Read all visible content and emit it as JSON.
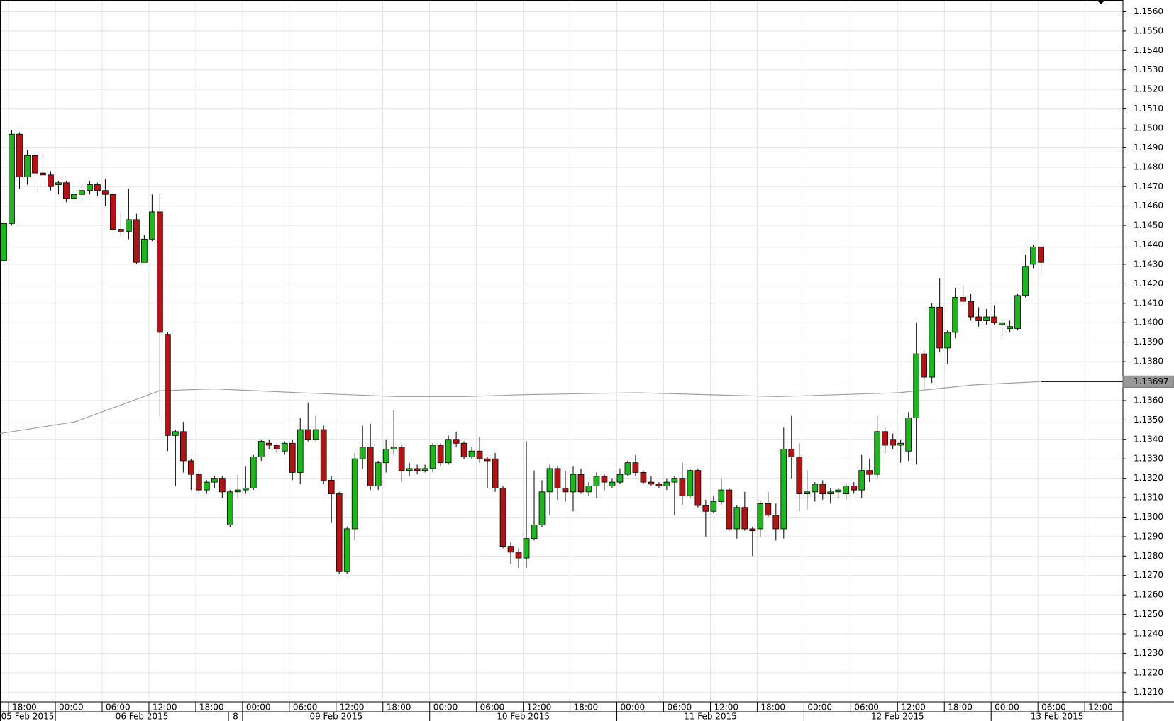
{
  "chart_data": {
    "type": "candlestick",
    "x": [
      0,
      1,
      2,
      3,
      4,
      5,
      6,
      7,
      8,
      9,
      10,
      11,
      12,
      13,
      14,
      15,
      16,
      17,
      18,
      19,
      20,
      21,
      22,
      23,
      24,
      25,
      26,
      27,
      28,
      29,
      30,
      31,
      32,
      33,
      34,
      35,
      36,
      37,
      38,
      39,
      40,
      41,
      42,
      43,
      44,
      45,
      46,
      47,
      48,
      49,
      50,
      51,
      52,
      53,
      54,
      55,
      56,
      57,
      58,
      59,
      60,
      61,
      62,
      63,
      64,
      65,
      66,
      67,
      68,
      69,
      70,
      71,
      72,
      73,
      74,
      75,
      76,
      77,
      78,
      79,
      80,
      81,
      82,
      83,
      84,
      85,
      86,
      87,
      88,
      89,
      90,
      91,
      92,
      93,
      94,
      95,
      96,
      97,
      98,
      99,
      100,
      101,
      102,
      103,
      104,
      105,
      106,
      107,
      108,
      109,
      110,
      111,
      112,
      113,
      114,
      115,
      116,
      117,
      118,
      119,
      120,
      121,
      122,
      123,
      124,
      125,
      126,
      127,
      128,
      129,
      130,
      131,
      132,
      133
    ],
    "open": [
      1.1432,
      1.1451,
      1.1497,
      1.1475,
      1.1486,
      1.1477,
      1.1476,
      1.1471,
      1.1472,
      1.1464,
      1.1466,
      1.1468,
      1.1471,
      1.1468,
      1.1466,
      1.1448,
      1.1447,
      1.1453,
      1.1431,
      1.1443,
      1.1457,
      1.1394,
      1.1342,
      1.1344,
      1.1329,
      1.1322,
      1.1314,
      1.1318,
      1.132,
      1.1296,
      1.1313,
      1.1314,
      1.1315,
      1.1331,
      1.1338,
      1.1337,
      1.1334,
      1.1338,
      1.1323,
      1.1345,
      1.134,
      1.1345,
      1.1319,
      1.1312,
      1.1272,
      1.1294,
      1.133,
      1.1336,
      1.1316,
      1.1328,
      1.1335,
      1.1336,
      1.1324,
      1.1325,
      1.1324,
      1.1325,
      1.1337,
      1.1328,
      1.134,
      1.1338,
      1.1331,
      1.1334,
      1.133,
      1.133,
      1.1315,
      1.1285,
      1.1282,
      1.1279,
      1.1289,
      1.1296,
      1.1313,
      1.1325,
      1.1315,
      1.1313,
      1.1322,
      1.1313,
      1.1316,
      1.1321,
      1.1316,
      1.1318,
      1.1322,
      1.1328,
      1.1323,
      1.1318,
      1.1317,
      1.1316,
      1.1318,
      1.132,
      1.1311,
      1.1324,
      1.1306,
      1.1303,
      1.1308,
      1.1314,
      1.1294,
      1.1305,
      1.1294,
      1.1294,
      1.1307,
      1.1301,
      1.1294,
      1.1335,
      1.1331,
      1.1312,
      1.1313,
      1.1317,
      1.1312,
      1.1313,
      1.1312,
      1.1316,
      1.1314,
      1.1324,
      1.1322,
      1.1344,
      1.134,
      1.1337,
      1.1334,
      1.1351,
      1.1384,
      1.1372,
      1.1408,
      1.1387,
      1.1395,
      1.1413,
      1.1411,
      1.1403,
      1.1401,
      1.1403,
      1.1399,
      1.1397,
      1.1397,
      1.1414,
      1.143,
      1.1439
    ],
    "high": [
      1.1452,
      1.1499,
      1.1498,
      1.1489,
      1.1487,
      1.1485,
      1.1478,
      1.1473,
      1.1473,
      1.1468,
      1.147,
      1.1473,
      1.1472,
      1.1474,
      1.1467,
      1.1456,
      1.1469,
      1.1456,
      1.1445,
      1.1466,
      1.1466,
      1.1395,
      1.1345,
      1.1349,
      1.133,
      1.1324,
      1.1319,
      1.1321,
      1.1321,
      1.1314,
      1.1322,
      1.1326,
      1.1332,
      1.134,
      1.134,
      1.1338,
      1.1339,
      1.134,
      1.1351,
      1.1359,
      1.1352,
      1.1347,
      1.1321,
      1.1313,
      1.1295,
      1.1333,
      1.1347,
      1.1348,
      1.1329,
      1.134,
      1.1355,
      1.1337,
      1.1328,
      1.1327,
      1.1327,
      1.1338,
      1.1338,
      1.1342,
      1.1344,
      1.1339,
      1.1336,
      1.1341,
      1.1331,
      1.1333,
      1.1316,
      1.1287,
      1.1284,
      1.1339,
      1.1324,
      1.1319,
      1.1327,
      1.1326,
      1.1324,
      1.1326,
      1.1325,
      1.1318,
      1.1323,
      1.1322,
      1.132,
      1.1325,
      1.1329,
      1.1332,
      1.1324,
      1.1321,
      1.1318,
      1.132,
      1.1321,
      1.1328,
      1.1325,
      1.1325,
      1.1309,
      1.1311,
      1.132,
      1.1315,
      1.1306,
      1.1313,
      1.1295,
      1.1308,
      1.1313,
      1.1307,
      1.1346,
      1.1352,
      1.1338,
      1.1324,
      1.1318,
      1.1319,
      1.1315,
      1.1315,
      1.1317,
      1.1318,
      1.1332,
      1.133,
      1.1352,
      1.1346,
      1.1343,
      1.134,
      1.1354,
      1.14,
      1.1386,
      1.141,
      1.1423,
      1.1396,
      1.1418,
      1.1419,
      1.1415,
      1.1408,
      1.1407,
      1.1409,
      1.1402,
      1.1401,
      1.1415,
      1.1435,
      1.144,
      1.144
    ],
    "low": [
      1.1429,
      1.145,
      1.1469,
      1.1471,
      1.1469,
      1.147,
      1.1468,
      1.1466,
      1.1462,
      1.1462,
      1.1462,
      1.1466,
      1.1465,
      1.146,
      1.1447,
      1.1444,
      1.1443,
      1.143,
      1.1431,
      1.1442,
      1.1352,
      1.1334,
      1.1316,
      1.1323,
      1.1314,
      1.1312,
      1.1312,
      1.1315,
      1.131,
      1.1295,
      1.131,
      1.1312,
      1.1314,
      1.1329,
      1.1335,
      1.1333,
      1.1332,
      1.1319,
      1.1317,
      1.1339,
      1.1339,
      1.1317,
      1.1297,
      1.1271,
      1.1271,
      1.1288,
      1.1325,
      1.1314,
      1.1314,
      1.1323,
      1.1332,
      1.1318,
      1.1321,
      1.1322,
      1.1323,
      1.1323,
      1.1326,
      1.1327,
      1.1336,
      1.133,
      1.133,
      1.1328,
      1.1315,
      1.1313,
      1.1284,
      1.1276,
      1.1274,
      1.1274,
      1.1288,
      1.1295,
      1.1301,
      1.1309,
      1.1308,
      1.1303,
      1.1312,
      1.1311,
      1.131,
      1.1314,
      1.1315,
      1.1317,
      1.1321,
      1.1321,
      1.1317,
      1.1316,
      1.1315,
      1.1314,
      1.1301,
      1.1306,
      1.131,
      1.1305,
      1.129,
      1.1302,
      1.1306,
      1.1293,
      1.1289,
      1.1293,
      1.128,
      1.129,
      1.13,
      1.1288,
      1.1289,
      1.132,
      1.1303,
      1.1304,
      1.1308,
      1.1309,
      1.1307,
      1.131,
      1.1309,
      1.1312,
      1.131,
      1.1318,
      1.132,
      1.1333,
      1.1335,
      1.1328,
      1.1329,
      1.1327,
      1.1366,
      1.1369,
      1.1385,
      1.1379,
      1.1392,
      1.141,
      1.1401,
      1.1398,
      1.1399,
      1.1399,
      1.1393,
      1.1395,
      1.1396,
      1.1413,
      1.1428,
      1.1425
    ],
    "close": [
      1.1451,
      1.1497,
      1.1475,
      1.1486,
      1.1477,
      1.1476,
      1.147,
      1.1472,
      1.1464,
      1.1466,
      1.1468,
      1.1471,
      1.1468,
      1.1466,
      1.1448,
      1.1447,
      1.1453,
      1.1431,
      1.1443,
      1.1457,
      1.1395,
      1.1342,
      1.1344,
      1.1329,
      1.1322,
      1.1314,
      1.1318,
      1.132,
      1.1313,
      1.1313,
      1.1314,
      1.1315,
      1.1331,
      1.1339,
      1.1337,
      1.1335,
      1.1338,
      1.1323,
      1.1345,
      1.134,
      1.1345,
      1.1319,
      1.1312,
      1.1272,
      1.1294,
      1.133,
      1.1336,
      1.1316,
      1.1328,
      1.1335,
      1.1336,
      1.1324,
      1.1325,
      1.1324,
      1.1325,
      1.1337,
      1.1328,
      1.134,
      1.1338,
      1.1331,
      1.1334,
      1.133,
      1.1329,
      1.1315,
      1.1285,
      1.1282,
      1.1279,
      1.1289,
      1.1296,
      1.1313,
      1.1325,
      1.1315,
      1.1313,
      1.1322,
      1.1313,
      1.1316,
      1.1321,
      1.1318,
      1.1318,
      1.1322,
      1.1328,
      1.1323,
      1.1318,
      1.1317,
      1.1316,
      1.1318,
      1.132,
      1.1311,
      1.1324,
      1.1306,
      1.1303,
      1.1308,
      1.1314,
      1.1294,
      1.1305,
      1.1294,
      1.1293,
      1.1307,
      1.1301,
      1.1294,
      1.1335,
      1.1331,
      1.1312,
      1.1313,
      1.1317,
      1.1312,
      1.1313,
      1.1314,
      1.1316,
      1.1314,
      1.1324,
      1.1322,
      1.1344,
      1.1337,
      1.1337,
      1.1338,
      1.1351,
      1.1384,
      1.1372,
      1.1408,
      1.1387,
      1.1395,
      1.1413,
      1.1411,
      1.1403,
      1.1401,
      1.1403,
      1.14,
      1.14,
      1.1398,
      1.1414,
      1.1429,
      1.1439,
      1.1431
    ],
    "up_color": "#1fb51f",
    "down_color": "#b01414",
    "overlay_line": {
      "color": "#a0a0a0",
      "x": [
        -0.48,
        9.1,
        19.96,
        26.9,
        37.9,
        50.4,
        59,
        66.7,
        81.1,
        99.3,
        114.7,
        124.3,
        132.9
      ],
      "values": [
        1.1343,
        1.1349,
        1.1365,
        1.1366,
        1.1364,
        1.1362,
        1.1362,
        1.1363,
        1.1364,
        1.1362,
        1.1364,
        1.1368,
        1.13697
      ]
    },
    "last_value": 1.13697,
    "xlim": [
      -0.5,
      143.5
    ],
    "ylim": [
      1.1205,
      1.1566
    ],
    "grid": true,
    "xticks": [
      {
        "value": 0.6,
        "label": "18:00"
      },
      {
        "value": 6.6,
        "label": "00:00"
      },
      {
        "value": 12.6,
        "label": "06:00"
      },
      {
        "value": 18.6,
        "label": "12:00"
      },
      {
        "value": 24.6,
        "label": "18:00"
      },
      {
        "value": 30.6,
        "label": "00:00"
      },
      {
        "value": 36.6,
        "label": "06:00"
      },
      {
        "value": 42.6,
        "label": "12:00"
      },
      {
        "value": 48.6,
        "label": "18:00"
      },
      {
        "value": 54.6,
        "label": "00:00"
      },
      {
        "value": 60.6,
        "label": "06:00"
      },
      {
        "value": 66.6,
        "label": "12:00"
      },
      {
        "value": 72.6,
        "label": "18:00"
      },
      {
        "value": 78.6,
        "label": "00:00"
      },
      {
        "value": 84.6,
        "label": "06:00"
      },
      {
        "value": 90.6,
        "label": "12:00"
      },
      {
        "value": 96.6,
        "label": "18:00"
      },
      {
        "value": 102.6,
        "label": "00:00"
      },
      {
        "value": 108.6,
        "label": "06:00"
      },
      {
        "value": 114.6,
        "label": "12:00"
      },
      {
        "value": 120.6,
        "label": "18:00"
      },
      {
        "value": 126.6,
        "label": "00:00"
      },
      {
        "value": 132.6,
        "label": "06:00"
      },
      {
        "value": 138.6,
        "label": "12:00"
      }
    ],
    "date_labels": [
      {
        "value": -0.5,
        "label": "05 Feb 2015"
      },
      {
        "value": 6.6,
        "label": "06 Feb 2015"
      },
      {
        "value": 28.8,
        "label": "8"
      },
      {
        "value": 30.6,
        "label": "09 Feb 2015"
      },
      {
        "value": 54.6,
        "label": "10 Feb 2015"
      },
      {
        "value": 78.6,
        "label": "11 Feb 2015"
      },
      {
        "value": 102.6,
        "label": "12 Feb 2015"
      },
      {
        "value": 126.6,
        "label": "13 Feb 2015"
      }
    ],
    "yticks": [
      {
        "value": 1.121,
        "label": "1.1210"
      },
      {
        "value": 1.122,
        "label": "1.1220"
      },
      {
        "value": 1.123,
        "label": "1.1230"
      },
      {
        "value": 1.124,
        "label": "1.1240"
      },
      {
        "value": 1.125,
        "label": "1.1250"
      },
      {
        "value": 1.126,
        "label": "1.1260"
      },
      {
        "value": 1.127,
        "label": "1.1270"
      },
      {
        "value": 1.128,
        "label": "1.1280"
      },
      {
        "value": 1.129,
        "label": "1.1290"
      },
      {
        "value": 1.13,
        "label": "1.1300"
      },
      {
        "value": 1.131,
        "label": "1.1310"
      },
      {
        "value": 1.132,
        "label": "1.1320"
      },
      {
        "value": 1.133,
        "label": "1.1330"
      },
      {
        "value": 1.134,
        "label": "1.1340"
      },
      {
        "value": 1.135,
        "label": "1.1350"
      },
      {
        "value": 1.136,
        "label": "1.1360"
      },
      {
        "value": 1.137,
        "label": "1.1370"
      },
      {
        "value": 1.138,
        "label": "1.1380"
      },
      {
        "value": 1.139,
        "label": "1.1390"
      },
      {
        "value": 1.14,
        "label": "1.1400"
      },
      {
        "value": 1.141,
        "label": "1.1410"
      },
      {
        "value": 1.142,
        "label": "1.1420"
      },
      {
        "value": 1.143,
        "label": "1.1430"
      },
      {
        "value": 1.144,
        "label": "1.1440"
      },
      {
        "value": 1.145,
        "label": "1.1450"
      },
      {
        "value": 1.146,
        "label": "1.1460"
      },
      {
        "value": 1.147,
        "label": "1.1470"
      },
      {
        "value": 1.148,
        "label": "1.1480"
      },
      {
        "value": 1.149,
        "label": "1.1490"
      },
      {
        "value": 1.15,
        "label": "1.1500"
      },
      {
        "value": 1.151,
        "label": "1.1510"
      },
      {
        "value": 1.152,
        "label": "1.1520"
      },
      {
        "value": 1.153,
        "label": "1.1530"
      },
      {
        "value": 1.154,
        "label": "1.1540"
      },
      {
        "value": 1.155,
        "label": "1.1550"
      },
      {
        "value": 1.156,
        "label": "1.1560"
      }
    ]
  }
}
